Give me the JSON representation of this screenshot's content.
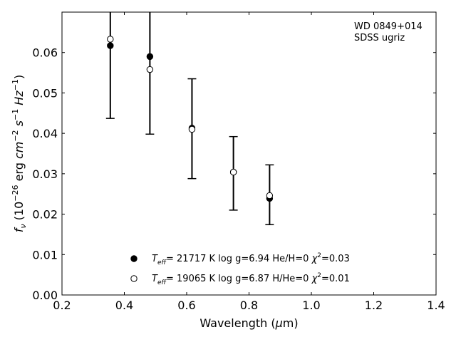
{
  "chart_data": {
    "type": "scatter",
    "title": "",
    "xlabel": "Wavelength (μm)",
    "ylabel": "f_ν (10^-26 erg cm^-2 s^-1 Hz^-1)",
    "xlim": [
      0.2,
      1.4
    ],
    "ylim": [
      0.0,
      0.07
    ],
    "x_ticks": [
      0.2,
      0.4,
      0.6,
      0.8,
      1.0,
      1.2,
      1.4
    ],
    "x_tick_labels": [
      "0.2",
      "0.4",
      "0.6",
      "0.8",
      "1.0",
      "1.2",
      "1.4"
    ],
    "y_ticks": [
      0.0,
      0.01,
      0.02,
      0.03,
      0.04,
      0.05,
      0.06
    ],
    "y_tick_labels": [
      "0.00",
      "0.01",
      "0.02",
      "0.03",
      "0.04",
      "0.05",
      "0.06"
    ],
    "grid": false,
    "legend_position": "lower-center",
    "annotation": {
      "line1": "WD 0849+014",
      "line2": "SDSS ugriz"
    },
    "observed": {
      "x": [
        0.355,
        0.482,
        0.617,
        0.75,
        0.866
      ],
      "y": [
        0.0617,
        0.059,
        0.0413,
        0.0304,
        0.0239
      ],
      "err_low": [
        0.0437,
        0.0398,
        0.0288,
        0.021,
        0.0174
      ],
      "err_high": [
        0.072,
        0.072,
        0.0535,
        0.0392,
        0.0322
      ]
    },
    "series": [
      {
        "name": "T_eff= 21717 K  log g=6.94  He/H=0  χ²=0.03",
        "marker": "filled-circle",
        "color": "#000000",
        "x": [
          0.355,
          0.482,
          0.617,
          0.75,
          0.866
        ],
        "y": [
          0.0617,
          0.059,
          0.0413,
          0.0304,
          0.0239
        ]
      },
      {
        "name": "T_eff= 19065 K  log g=6.87  H/He=0  χ²=0.01",
        "marker": "open-circle",
        "color": "#000000",
        "x": [
          0.355,
          0.482,
          0.617,
          0.75,
          0.866
        ],
        "y": [
          0.0633,
          0.0558,
          0.041,
          0.0304,
          0.0246
        ]
      }
    ]
  }
}
